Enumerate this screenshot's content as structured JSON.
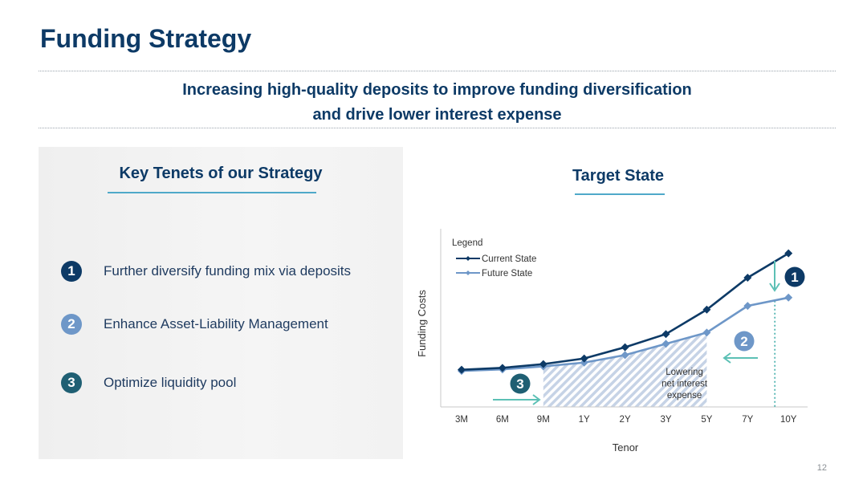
{
  "page": {
    "title": "Funding Strategy",
    "subtitle_line1": "Increasing high-quality deposits to improve funding diversification",
    "subtitle_line2": "and drive lower interest expense",
    "page_number": "12"
  },
  "left_panel": {
    "heading": "Key Tenets of our Strategy",
    "tenets": [
      {
        "number": "1",
        "text": "Further diversify funding mix via deposits",
        "color": "#0d3a66"
      },
      {
        "number": "2",
        "text": "Enhance Asset-Liability Management",
        "color": "#6e97c8"
      },
      {
        "number": "3",
        "text": "Optimize liquidity pool",
        "color": "#1f5f73"
      }
    ]
  },
  "right_panel": {
    "heading": "Target State"
  },
  "chart_data": {
    "type": "line",
    "categories": [
      "3M",
      "6M",
      "9M",
      "1Y",
      "2Y",
      "3Y",
      "5Y",
      "7Y",
      "10Y"
    ],
    "xlabel": "Tenor",
    "ylabel": "Funding Costs",
    "legend_title": "Legend",
    "legend_position": "top-left",
    "grid": false,
    "series": [
      {
        "name": "Current State",
        "color": "#0d3a66",
        "values": [
          0.5,
          1.0,
          2.0,
          3.5,
          6.5,
          10.0,
          16.5,
          25.0,
          31.5
        ]
      },
      {
        "name": "Future State",
        "color": "#6e97c8",
        "values": [
          0.2,
          0.6,
          1.4,
          2.4,
          4.4,
          7.4,
          10.4,
          17.5,
          19.7
        ]
      }
    ],
    "ylim": [
      -5,
      35
    ],
    "shaded_region": {
      "from": "9M",
      "to": "5Y",
      "label_lines": [
        "Lowering",
        "net interest",
        "expense"
      ]
    },
    "annotations": [
      {
        "number": "1",
        "color": "#0d3a66"
      },
      {
        "number": "2",
        "color": "#6e97c8"
      },
      {
        "number": "3",
        "color": "#1f5f73"
      }
    ],
    "arrow_color": "#5cc0b5"
  }
}
